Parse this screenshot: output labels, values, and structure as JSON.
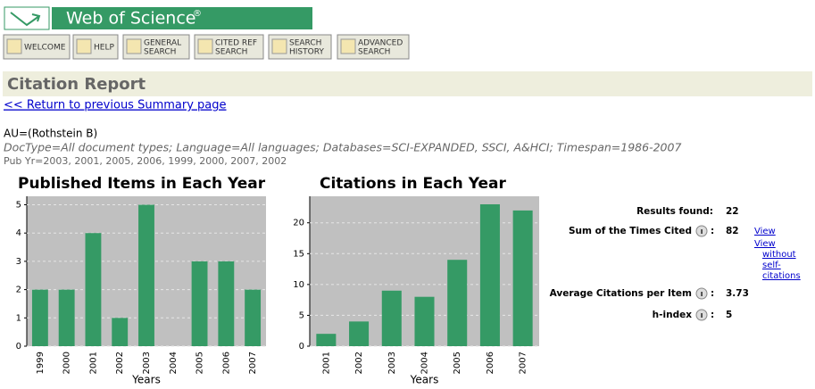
{
  "header": {
    "title": "Web of Science",
    "mark": "®"
  },
  "nav": [
    {
      "lines": [
        "WELCOME"
      ]
    },
    {
      "lines": [
        "HELP"
      ]
    },
    {
      "lines": [
        "GENERAL",
        "SEARCH"
      ]
    },
    {
      "lines": [
        "CITED REF",
        "SEARCH"
      ]
    },
    {
      "lines": [
        "SEARCH",
        "HISTORY"
      ]
    },
    {
      "lines": [
        "ADVANCED",
        "SEARCH"
      ]
    }
  ],
  "report": {
    "title": "Citation Report",
    "back_link": "<< Return to previous Summary page",
    "query": "AU=(Rothstein B)",
    "filters": "DocType=All document types; Language=All languages; Databases=SCI-EXPANDED, SSCI, A&HCI; Timespan=1986-2007",
    "pub_years": "Pub Yr=2003, 2001, 2005, 2006, 1999, 2000, 2007, 2002"
  },
  "chart_data": [
    {
      "type": "bar",
      "title": "Published Items in Each Year",
      "x_label": "Years",
      "categories": [
        "1999",
        "2000",
        "2001",
        "2002",
        "2003",
        "2004",
        "2005",
        "2006",
        "2007"
      ],
      "values": [
        2,
        2,
        4,
        1,
        5,
        0,
        3,
        3,
        2
      ],
      "color": "#359a65",
      "ylim": [
        0,
        5.3
      ],
      "yticks": [
        0,
        1,
        2,
        3,
        4,
        5
      ],
      "grid": true
    },
    {
      "type": "bar",
      "title": "Citations in Each Year",
      "x_label": "Years",
      "categories": [
        "2001",
        "2002",
        "2003",
        "2004",
        "2005",
        "2006",
        "2007"
      ],
      "values": [
        2,
        4,
        9,
        8,
        14,
        23,
        22
      ],
      "color": "#359a65",
      "ylim": [
        0,
        24.3
      ],
      "yticks": [
        0,
        5,
        10,
        15,
        20
      ],
      "grid": true
    }
  ],
  "stats": [
    {
      "label": "Results found:",
      "value": 22
    },
    {
      "label": "Sum of the Times Cited",
      "colon": ":",
      "value": 82,
      "links": [
        "View",
        "View",
        "without",
        "self-",
        "citations"
      ]
    },
    {
      "label": "Average Citations per Item",
      "colon": ":",
      "value": 3.73
    },
    {
      "label": "h-index",
      "colon": ":",
      "value": 5
    }
  ]
}
